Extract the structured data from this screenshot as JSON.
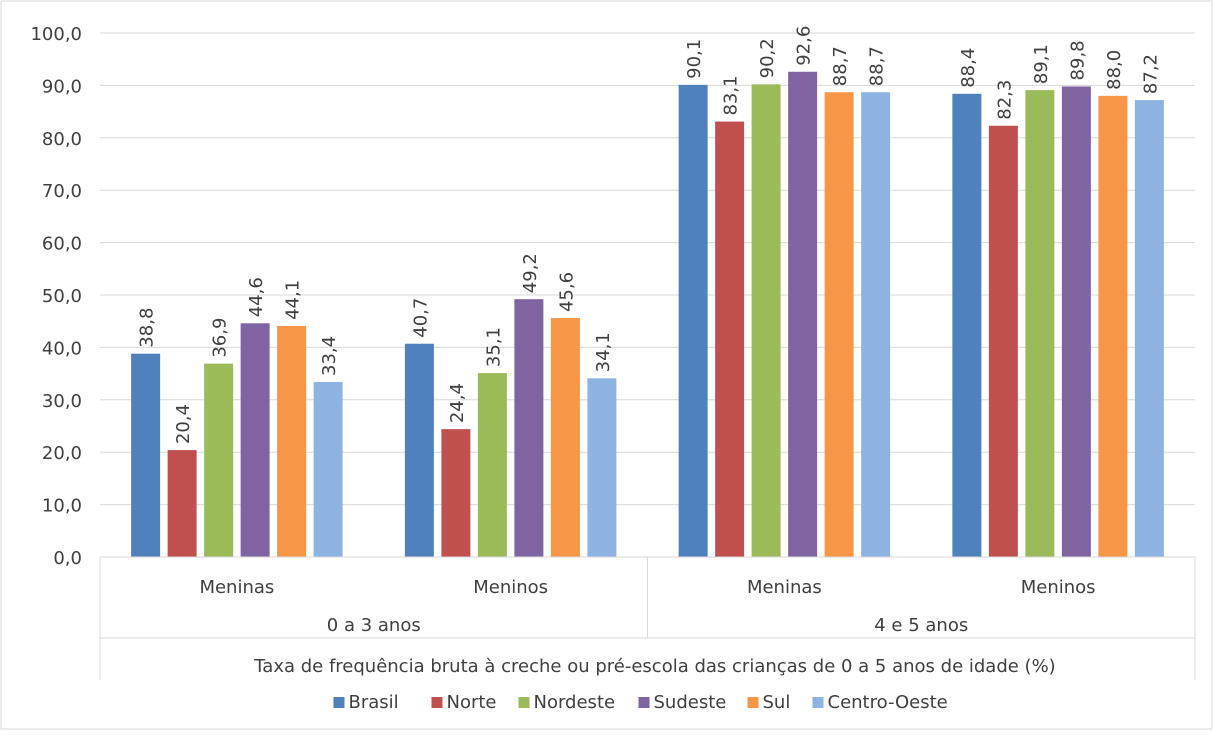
{
  "chart_data": {
    "type": "bar",
    "title": "",
    "xlabel": "Taxa de frequência bruta à creche ou pré-escola das crianças de 0 a 5 anos de idade (%)",
    "ylabel": "",
    "ylim": [
      0,
      100
    ],
    "y_ticks": [
      "0,0",
      "10,0",
      "20,0",
      "30,0",
      "40,0",
      "50,0",
      "60,0",
      "70,0",
      "80,0",
      "90,0",
      "100,0"
    ],
    "grid": true,
    "legend_position": "bottom",
    "groups": [
      {
        "label": "0 a 3 anos",
        "categories": [
          "Meninas",
          "Meninos"
        ]
      },
      {
        "label": "4 e 5 anos",
        "categories": [
          "Meninas",
          "Meninos"
        ]
      }
    ],
    "categories": [
      "Meninas",
      "Meninos",
      "Meninas",
      "Meninos"
    ],
    "series": [
      {
        "name": "Brasil",
        "color": "#4f81bd",
        "values": [
          38.8,
          40.7,
          90.1,
          88.4
        ],
        "labels": [
          "38,8",
          "40,7",
          "90,1",
          "88,4"
        ]
      },
      {
        "name": "Norte",
        "color": "#c0504d",
        "values": [
          20.4,
          24.4,
          83.1,
          82.3
        ],
        "labels": [
          "20,4",
          "24,4",
          "83,1",
          "82,3"
        ]
      },
      {
        "name": "Nordeste",
        "color": "#9bbb59",
        "values": [
          36.9,
          35.1,
          90.2,
          89.1
        ],
        "labels": [
          "36,9",
          "35,1",
          "90,2",
          "89,1"
        ]
      },
      {
        "name": "Sudeste",
        "color": "#8064a2",
        "values": [
          44.6,
          49.2,
          92.6,
          89.8
        ],
        "labels": [
          "44,6",
          "49,2",
          "92,6",
          "89,8"
        ]
      },
      {
        "name": "Sul",
        "color": "#f79646",
        "values": [
          44.1,
          45.6,
          88.7,
          88.0
        ],
        "labels": [
          "44,1",
          "45,6",
          "88,7",
          "88,0"
        ]
      },
      {
        "name": "Centro-Oeste",
        "color": "#8db3e2",
        "values": [
          33.4,
          34.1,
          88.7,
          87.2
        ],
        "labels": [
          "33,4",
          "34,1",
          "88,7",
          "87,2"
        ]
      }
    ]
  }
}
